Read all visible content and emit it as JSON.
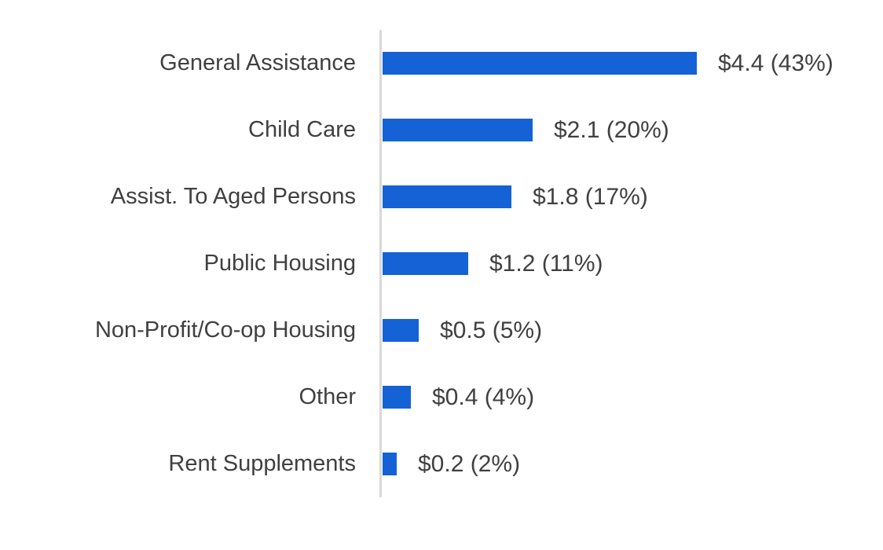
{
  "colors": {
    "bar": "#1462d6",
    "axis_line": "#d9d9d9",
    "text": "#404040",
    "background": "#ffffff"
  },
  "chart_data": {
    "type": "bar",
    "orientation": "horizontal",
    "title": "",
    "xlabel": "",
    "ylabel": "",
    "categories": [
      "General Assistance",
      "Child Care",
      "Assist. To Aged Persons",
      "Public Housing",
      "Non-Profit/Co-op Housing",
      "Other",
      "Rent Supplements"
    ],
    "values": [
      4.4,
      2.1,
      1.8,
      1.2,
      0.5,
      0.4,
      0.2
    ],
    "percents": [
      43,
      20,
      17,
      11,
      5,
      4,
      2
    ],
    "value_labels": [
      "$4.4 (43%)",
      "$2.1 (20%)",
      "$1.8 (17%)",
      "$1.2 (11%)",
      "$0.5 (5%)",
      "$0.4 (4%)",
      "$0.2 (2%)"
    ],
    "xlim": [
      0,
      5
    ],
    "grid": false,
    "legend": false,
    "baseline_axis": "left-vertical"
  }
}
